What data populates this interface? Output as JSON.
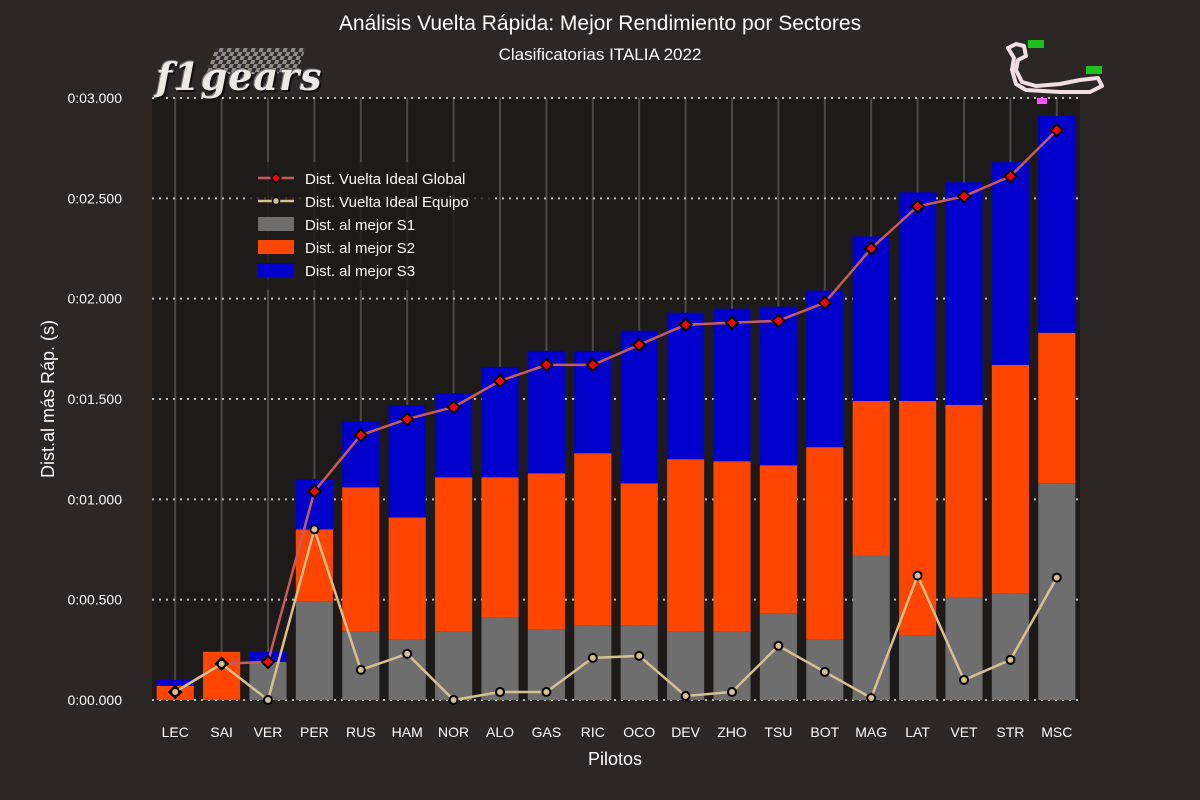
{
  "header": {
    "title": "Análisis Vuelta Rápida: Mejor Rendimiento por Sectores",
    "subtitle": "Clasificatorias ITALIA 2022",
    "logo_text": "f1gears"
  },
  "colors": {
    "background": "#2b2725",
    "plot_background": "#1d1b1a",
    "s1": "#6e6e6e",
    "s2": "#ff4500",
    "s3": "#0000cd",
    "ideal_global_line": "#c85a5a",
    "ideal_global_marker": "#ff0000",
    "ideal_team_line": "#d8c08a",
    "ideal_team_marker": "#d8c08a"
  },
  "chart_data": {
    "type": "bar",
    "stacked": true,
    "title": "Análisis Vuelta Rápida: Mejor Rendimiento por Sectores",
    "subtitle": "Clasificatorias ITALIA 2022",
    "xlabel": "Pilotos",
    "ylabel": "Dist.al más Ráp. (s)",
    "ylim": [
      0,
      0.3
    ],
    "yticks": [
      0,
      0.05,
      0.1,
      0.15,
      0.2,
      0.25,
      0.3
    ],
    "ytick_labels": [
      "0:00.000",
      "0:00.500",
      "0:01.000",
      "0:01.500",
      "0:02.000",
      "0:02.500",
      "0:03.000"
    ],
    "grid": "y-dotted, x-solid",
    "legend_position": "upper-left",
    "categories": [
      "LEC",
      "SAI",
      "VER",
      "PER",
      "RUS",
      "HAM",
      "NOR",
      "ALO",
      "GAS",
      "RIC",
      "OCO",
      "DEV",
      "ZHO",
      "TSU",
      "BOT",
      "MAG",
      "LAT",
      "VET",
      "STR",
      "MSC"
    ],
    "series": [
      {
        "name": "Dist. al mejor S1",
        "kind": "bar",
        "values": [
          0.0,
          0.0,
          0.019,
          0.049,
          0.034,
          0.03,
          0.034,
          0.041,
          0.035,
          0.037,
          0.037,
          0.034,
          0.034,
          0.043,
          0.03,
          0.072,
          0.032,
          0.051,
          0.053,
          0.108
        ]
      },
      {
        "name": "Dist. al mejor S2",
        "kind": "bar",
        "values": [
          0.007,
          0.024,
          0.0,
          0.036,
          0.072,
          0.061,
          0.077,
          0.07,
          0.078,
          0.086,
          0.071,
          0.086,
          0.085,
          0.074,
          0.096,
          0.077,
          0.117,
          0.096,
          0.114,
          0.075
        ]
      },
      {
        "name": "Dist. al mejor S3",
        "kind": "bar",
        "values": [
          0.003,
          0.0,
          0.005,
          0.025,
          0.033,
          0.056,
          0.042,
          0.055,
          0.061,
          0.051,
          0.076,
          0.073,
          0.076,
          0.079,
          0.078,
          0.082,
          0.104,
          0.111,
          0.101,
          0.108
        ]
      },
      {
        "name": "Dist. Vuelta Ideal Global",
        "kind": "line",
        "values": [
          0.004,
          0.018,
          0.019,
          0.104,
          0.132,
          0.14,
          0.146,
          0.159,
          0.167,
          0.167,
          0.177,
          0.187,
          0.188,
          0.189,
          0.198,
          0.225,
          0.246,
          0.251,
          0.261,
          0.284
        ]
      },
      {
        "name": "Dist. Vuelta Ideal Equipo",
        "kind": "line",
        "values": [
          0.004,
          0.018,
          0.0,
          0.085,
          0.015,
          0.023,
          0.0,
          0.004,
          0.004,
          0.021,
          0.022,
          0.002,
          0.004,
          0.027,
          0.014,
          0.001,
          0.062,
          0.01,
          0.02,
          0.061
        ]
      }
    ]
  }
}
